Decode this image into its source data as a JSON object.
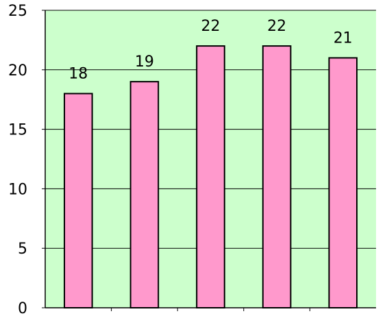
{
  "chart_data": {
    "type": "bar",
    "categories": [
      "",
      "",
      "",
      "",
      ""
    ],
    "values": [
      18,
      19,
      22,
      22,
      21
    ],
    "data_labels": [
      "18",
      "19",
      "22",
      "22",
      "21"
    ],
    "title": "",
    "xlabel": "",
    "ylabel": "",
    "ylim": [
      0,
      25
    ],
    "y_ticks": [
      0,
      5,
      10,
      15,
      20,
      25
    ],
    "y_tick_labels": [
      "0",
      "5",
      "10",
      "15",
      "20",
      "25"
    ],
    "grid": true,
    "legend": "none",
    "colors": {
      "plot_background": "#ccffcc",
      "bar_fill": "#ff99cc",
      "bar_stroke": "#000000",
      "gridline": "#000000",
      "axis": "#000000"
    }
  }
}
